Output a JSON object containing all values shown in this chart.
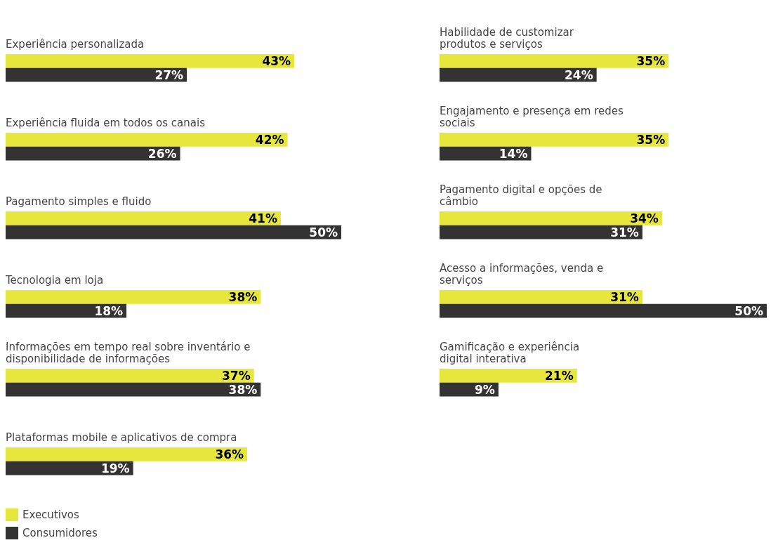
{
  "chart_data": [
    {
      "type": "bar",
      "orientation": "horizontal",
      "legend": "bottom left",
      "categories": [
        "Experiência personalizada",
        "Experiência fluida em todos os canais",
        "Pagamento simples e fluido",
        "Tecnologia em loja",
        "Informações em tempo real sobre inventário e disponibilidade de informações",
        "Plataformas mobile e aplicativos de compra"
      ],
      "series": [
        {
          "name": "Executivos",
          "color": "#e6e63c",
          "values": [
            43,
            42,
            41,
            38,
            37,
            36
          ],
          "value_labels": [
            "43%",
            "42%",
            "41%",
            "38%",
            "37%",
            "36%"
          ]
        },
        {
          "name": "Consumidores",
          "color": "#333333",
          "values": [
            27,
            26,
            50,
            18,
            38,
            19
          ],
          "value_labels": [
            "27%",
            "26%",
            "50%",
            "18%",
            "38%",
            "19%"
          ]
        }
      ]
    },
    {
      "type": "bar",
      "orientation": "horizontal",
      "categories": [
        "Habilidade de customizar produtos e serviços",
        "Engajamento e presença em redes sociais",
        "Pagamento digital e opções de câmbio",
        "Acesso a informações, venda e serviços",
        "Gamificação e experiência digital interativa"
      ],
      "series": [
        {
          "color": "#e6e63c",
          "values": [
            35,
            35,
            34,
            31,
            21
          ],
          "value_labels": [
            "35%",
            "35%",
            "34%",
            "31%",
            "21%"
          ]
        },
        {
          "color": "#333333",
          "values": [
            24,
            14,
            31,
            50,
            9
          ],
          "value_labels": [
            "24%",
            "14%",
            "31%",
            "50%",
            "9%"
          ]
        }
      ]
    }
  ]
}
